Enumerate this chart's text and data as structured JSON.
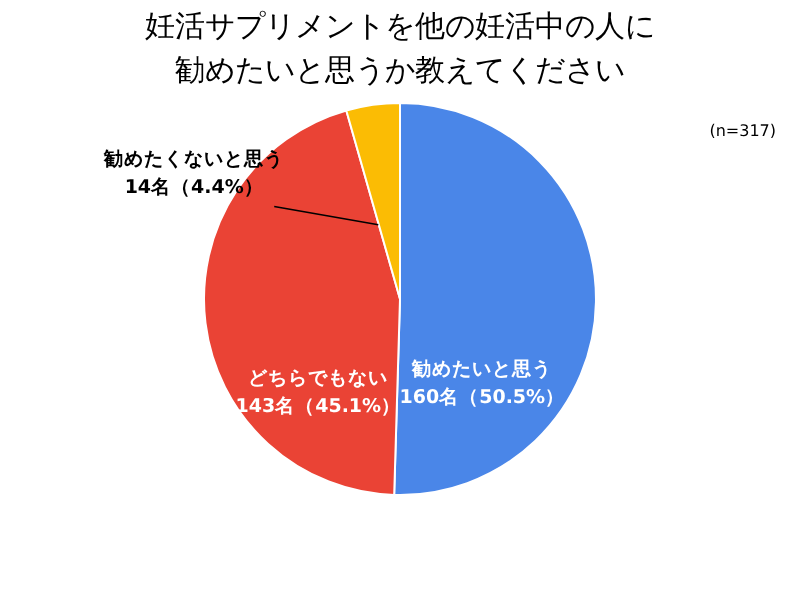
{
  "chart_data": {
    "type": "pie",
    "title": "妊活サプリメントを他の妊活中の人に勧めたいと思うか教えてください",
    "annotations": [
      "(n=317)"
    ],
    "categories": [
      "勧めたいと思う",
      "どちらでもない",
      "勧めたくないと思う"
    ],
    "values": [
      160,
      143,
      14
    ],
    "colors": [
      "#4a86e8",
      "#ea4335",
      "#fbbc04"
    ],
    "value_labels": [
      "160名（50.5%）",
      "143名（45.1%）",
      "14名（4.4%）"
    ]
  }
}
